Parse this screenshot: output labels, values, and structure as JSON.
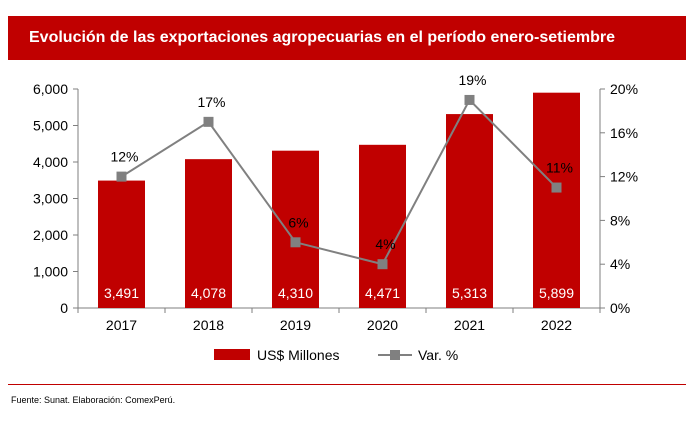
{
  "title": "Evolución de las exportaciones agropecuarias en el período enero-setiembre",
  "source": "Fuente: Sunat. Elaboración: ComexPerú.",
  "colors": {
    "accent": "#c00000",
    "line": "#808080",
    "text": "#000000",
    "bar_label": "#ffffff"
  },
  "chart_data": {
    "type": "bar",
    "categories": [
      "2017",
      "2018",
      "2019",
      "2020",
      "2021",
      "2022"
    ],
    "series": [
      {
        "name": "US$ Millones",
        "type": "bar",
        "axis": "left",
        "values": [
          3491,
          4078,
          4310,
          4471,
          5313,
          5899
        ],
        "labels": [
          "3,491",
          "4,078",
          "4,310",
          "4,471",
          "5,313",
          "5,899"
        ],
        "color": "#c00000"
      },
      {
        "name": "Var. %",
        "type": "line",
        "marker": "square",
        "axis": "right",
        "values": [
          12,
          17,
          6,
          4,
          19,
          11
        ],
        "labels": [
          "12%",
          "17%",
          "6%",
          "4%",
          "19%",
          "11%"
        ],
        "color": "#808080"
      }
    ],
    "y_left": {
      "ylim": [
        0,
        6000
      ],
      "ticks": [
        "0",
        "1,000",
        "2,000",
        "3,000",
        "4,000",
        "5,000",
        "6,000"
      ]
    },
    "y_right": {
      "ylim": [
        0,
        20
      ],
      "ticks": [
        "0%",
        "4%",
        "8%",
        "12%",
        "16%",
        "20%"
      ]
    },
    "grid": false,
    "legend": "bottom-center"
  }
}
